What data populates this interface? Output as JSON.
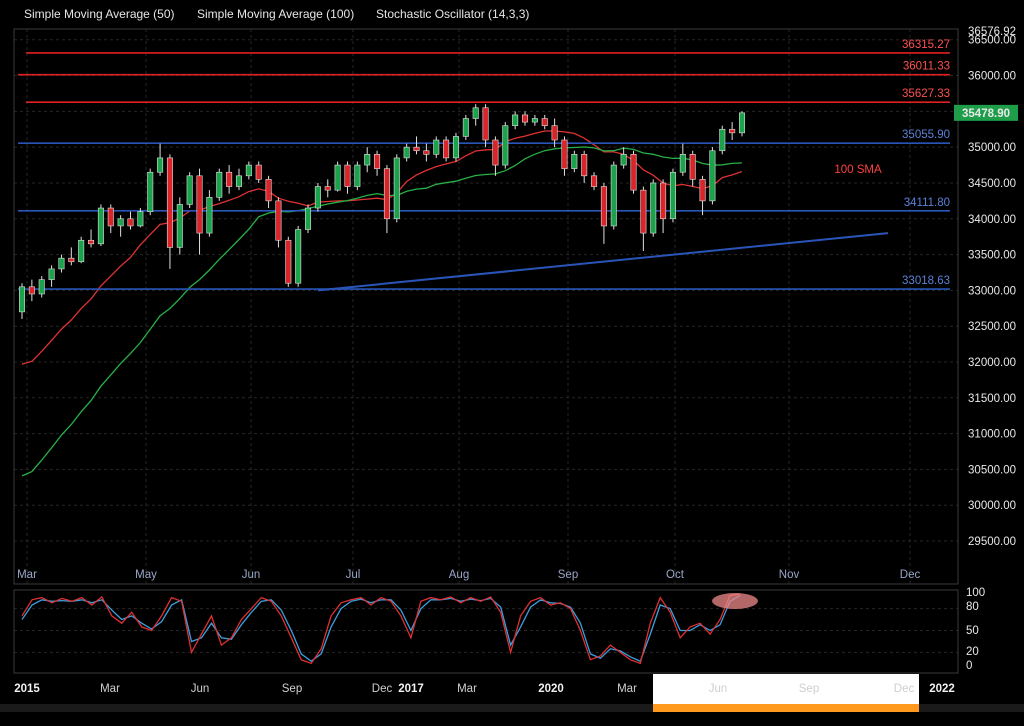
{
  "indicators": [
    {
      "label": "Simple Moving Average (50)"
    },
    {
      "label": "Simple Moving Average (100)"
    },
    {
      "label": "Stochastic Oscillator (14,3,3)"
    }
  ],
  "colors": {
    "background": "#000000",
    "bull_candle": "#1aa34a",
    "bear_candle": "#d9242a",
    "sma50": "#e03232",
    "sma100": "#27b045",
    "resistance": "#e02020",
    "support": "#2a55b8",
    "trendline": "#2a55b8",
    "stoch_k": "#e03030",
    "stoch_d": "#3aa0e0",
    "last_price_bg": "#1f9e4a",
    "navigator_window": "#ff9a1f",
    "highlight": "#f08a8a"
  },
  "chart_data": {
    "type": "candlestick",
    "y_axis": {
      "ylim": [
        28900,
        36650
      ],
      "ticks": [
        "36576.92",
        "36500.00",
        "36000.00",
        "35500.00",
        "35000.00",
        "34500.00",
        "34000.00",
        "33500.00",
        "33000.00",
        "32500.00",
        "32000.00",
        "31500.00",
        "31000.00",
        "30500.00",
        "30000.00",
        "29500.00"
      ]
    },
    "x_axis": {
      "months": [
        "Mar",
        "May",
        "Jun",
        "Jul",
        "Aug",
        "Sep",
        "Oct",
        "Nov",
        "Dec"
      ]
    },
    "last_price": "35478.90",
    "horizontal_levels": [
      {
        "value": 36315.27,
        "label": "36315.27",
        "kind": "resistance"
      },
      {
        "value": 36011.33,
        "label": "36011.33",
        "kind": "resistance"
      },
      {
        "value": 35627.33,
        "label": "35627.33",
        "kind": "resistance"
      },
      {
        "value": 35055.9,
        "label": "35055.90",
        "kind": "support"
      },
      {
        "value": 34111.8,
        "label": "34111.80",
        "kind": "support"
      },
      {
        "value": 33018.63,
        "label": "33018.63",
        "kind": "support"
      }
    ],
    "annotations": [
      {
        "text": "100 SMA",
        "value": 34750
      }
    ],
    "trendline": {
      "from": 33000,
      "to": 33800
    },
    "candles": [
      {
        "o": 32700,
        "h": 33100,
        "l": 32600,
        "c": 33050
      },
      {
        "o": 33050,
        "h": 33150,
        "l": 32850,
        "c": 32950
      },
      {
        "o": 32950,
        "h": 33200,
        "l": 32900,
        "c": 33150
      },
      {
        "o": 33150,
        "h": 33350,
        "l": 33050,
        "c": 33300
      },
      {
        "o": 33300,
        "h": 33500,
        "l": 33250,
        "c": 33450
      },
      {
        "o": 33450,
        "h": 33600,
        "l": 33350,
        "c": 33400
      },
      {
        "o": 33400,
        "h": 33750,
        "l": 33380,
        "c": 33700
      },
      {
        "o": 33700,
        "h": 33850,
        "l": 33600,
        "c": 33650
      },
      {
        "o": 33650,
        "h": 34200,
        "l": 33620,
        "c": 34150
      },
      {
        "o": 34150,
        "h": 34200,
        "l": 33800,
        "c": 33900
      },
      {
        "o": 33900,
        "h": 34050,
        "l": 33750,
        "c": 34000
      },
      {
        "o": 34000,
        "h": 34100,
        "l": 33850,
        "c": 33900
      },
      {
        "o": 33900,
        "h": 34150,
        "l": 33880,
        "c": 34100
      },
      {
        "o": 34100,
        "h": 34700,
        "l": 34050,
        "c": 34650
      },
      {
        "o": 34650,
        "h": 35050,
        "l": 34600,
        "c": 34850
      },
      {
        "o": 34850,
        "h": 34900,
        "l": 33300,
        "c": 33600
      },
      {
        "o": 33600,
        "h": 34300,
        "l": 33500,
        "c": 34200
      },
      {
        "o": 34200,
        "h": 34650,
        "l": 34150,
        "c": 34600
      },
      {
        "o": 34600,
        "h": 34700,
        "l": 33500,
        "c": 33800
      },
      {
        "o": 33800,
        "h": 34400,
        "l": 33750,
        "c": 34300
      },
      {
        "o": 34300,
        "h": 34700,
        "l": 34250,
        "c": 34650
      },
      {
        "o": 34650,
        "h": 34750,
        "l": 34350,
        "c": 34450
      },
      {
        "o": 34450,
        "h": 34700,
        "l": 34400,
        "c": 34600
      },
      {
        "o": 34600,
        "h": 34800,
        "l": 34550,
        "c": 34750
      },
      {
        "o": 34750,
        "h": 34800,
        "l": 34500,
        "c": 34550
      },
      {
        "o": 34550,
        "h": 34600,
        "l": 34150,
        "c": 34250
      },
      {
        "o": 34250,
        "h": 34300,
        "l": 33600,
        "c": 33700
      },
      {
        "o": 33700,
        "h": 33750,
        "l": 33050,
        "c": 33100
      },
      {
        "o": 33100,
        "h": 33900,
        "l": 33050,
        "c": 33850
      },
      {
        "o": 33850,
        "h": 34200,
        "l": 33800,
        "c": 34150
      },
      {
        "o": 34150,
        "h": 34500,
        "l": 34100,
        "c": 34450
      },
      {
        "o": 34450,
        "h": 34550,
        "l": 34300,
        "c": 34400
      },
      {
        "o": 34400,
        "h": 34800,
        "l": 34380,
        "c": 34750
      },
      {
        "o": 34750,
        "h": 34800,
        "l": 34350,
        "c": 34450
      },
      {
        "o": 34450,
        "h": 34800,
        "l": 34400,
        "c": 34750
      },
      {
        "o": 34750,
        "h": 35000,
        "l": 34650,
        "c": 34900
      },
      {
        "o": 34900,
        "h": 34950,
        "l": 34600,
        "c": 34700
      },
      {
        "o": 34700,
        "h": 34750,
        "l": 33800,
        "c": 34000
      },
      {
        "o": 34000,
        "h": 34900,
        "l": 33950,
        "c": 34850
      },
      {
        "o": 34850,
        "h": 35050,
        "l": 34800,
        "c": 35000
      },
      {
        "o": 35000,
        "h": 35150,
        "l": 34900,
        "c": 34950
      },
      {
        "o": 34950,
        "h": 35050,
        "l": 34800,
        "c": 34900
      },
      {
        "o": 34900,
        "h": 35150,
        "l": 34850,
        "c": 35100
      },
      {
        "o": 35100,
        "h": 35150,
        "l": 34800,
        "c": 34850
      },
      {
        "o": 34850,
        "h": 35200,
        "l": 34800,
        "c": 35150
      },
      {
        "o": 35150,
        "h": 35450,
        "l": 35100,
        "c": 35400
      },
      {
        "o": 35400,
        "h": 35600,
        "l": 35300,
        "c": 35550
      },
      {
        "o": 35550,
        "h": 35600,
        "l": 35000,
        "c": 35100
      },
      {
        "o": 35100,
        "h": 35150,
        "l": 34600,
        "c": 34750
      },
      {
        "o": 34750,
        "h": 35350,
        "l": 34700,
        "c": 35300
      },
      {
        "o": 35300,
        "h": 35500,
        "l": 35250,
        "c": 35450
      },
      {
        "o": 35450,
        "h": 35500,
        "l": 35300,
        "c": 35350
      },
      {
        "o": 35350,
        "h": 35450,
        "l": 35300,
        "c": 35400
      },
      {
        "o": 35400,
        "h": 35450,
        "l": 35250,
        "c": 35300
      },
      {
        "o": 35300,
        "h": 35400,
        "l": 35000,
        "c": 35100
      },
      {
        "o": 35100,
        "h": 35150,
        "l": 34600,
        "c": 34700
      },
      {
        "o": 34700,
        "h": 34950,
        "l": 34650,
        "c": 34900
      },
      {
        "o": 34900,
        "h": 34950,
        "l": 34500,
        "c": 34600
      },
      {
        "o": 34600,
        "h": 34650,
        "l": 34400,
        "c": 34450
      },
      {
        "o": 34450,
        "h": 34500,
        "l": 33650,
        "c": 33900
      },
      {
        "o": 33900,
        "h": 34800,
        "l": 33850,
        "c": 34750
      },
      {
        "o": 34750,
        "h": 35000,
        "l": 34700,
        "c": 34900
      },
      {
        "o": 34900,
        "h": 34950,
        "l": 34350,
        "c": 34400
      },
      {
        "o": 34400,
        "h": 34450,
        "l": 33550,
        "c": 33800
      },
      {
        "o": 33800,
        "h": 34550,
        "l": 33750,
        "c": 34500
      },
      {
        "o": 34500,
        "h": 34550,
        "l": 33800,
        "c": 34000
      },
      {
        "o": 34000,
        "h": 34700,
        "l": 33950,
        "c": 34650
      },
      {
        "o": 34650,
        "h": 35050,
        "l": 34600,
        "c": 34900
      },
      {
        "o": 34900,
        "h": 34950,
        "l": 34450,
        "c": 34550
      },
      {
        "o": 34550,
        "h": 34600,
        "l": 34050,
        "c": 34250
      },
      {
        "o": 34250,
        "h": 35000,
        "l": 34200,
        "c": 34950
      },
      {
        "o": 34950,
        "h": 35300,
        "l": 34900,
        "c": 35250
      },
      {
        "o": 35250,
        "h": 35350,
        "l": 35100,
        "c": 35200
      },
      {
        "o": 35200,
        "h": 35500,
        "l": 35150,
        "c": 35478.9
      }
    ],
    "stochastic": {
      "ylim": [
        0,
        100
      ],
      "ticks": [
        "100",
        "80",
        "50",
        "20",
        "0"
      ],
      "k": [
        70,
        92,
        95,
        88,
        94,
        90,
        95,
        85,
        96,
        70,
        60,
        75,
        55,
        50,
        70,
        95,
        90,
        20,
        45,
        70,
        30,
        40,
        65,
        80,
        95,
        90,
        70,
        40,
        10,
        5,
        25,
        70,
        88,
        92,
        95,
        85,
        95,
        90,
        70,
        40,
        90,
        95,
        92,
        96,
        88,
        95,
        90,
        96,
        75,
        20,
        70,
        90,
        95,
        85,
        88,
        80,
        50,
        10,
        15,
        30,
        20,
        10,
        5,
        60,
        95,
        75,
        40,
        55,
        60,
        45,
        65,
        98,
        100
      ],
      "d": [
        65,
        85,
        92,
        90,
        91,
        90,
        92,
        88,
        92,
        78,
        65,
        70,
        60,
        52,
        62,
        85,
        92,
        35,
        40,
        60,
        40,
        38,
        58,
        75,
        90,
        92,
        78,
        50,
        18,
        8,
        18,
        55,
        80,
        90,
        93,
        88,
        92,
        92,
        78,
        50,
        80,
        92,
        92,
        94,
        90,
        93,
        91,
        94,
        82,
        30,
        55,
        82,
        92,
        88,
        87,
        82,
        60,
        18,
        12,
        25,
        22,
        14,
        8,
        45,
        85,
        80,
        50,
        50,
        58,
        50,
        58,
        90,
        98
      ]
    }
  },
  "navigator": {
    "labels": [
      {
        "text": "2015",
        "bold": true
      },
      {
        "text": "Mar",
        "bold": false
      },
      {
        "text": "Jun",
        "bold": false
      },
      {
        "text": "Sep",
        "bold": false
      },
      {
        "text": "Dec",
        "bold": false
      },
      {
        "text": "2017",
        "bold": true
      },
      {
        "text": "Mar",
        "bold": false
      },
      {
        "text": "2020",
        "bold": true
      },
      {
        "text": "Mar",
        "bold": false
      },
      {
        "text": "Jun",
        "bold": false
      },
      {
        "text": "Sep",
        "bold": false
      },
      {
        "text": "Dec",
        "bold": false
      },
      {
        "text": "2022",
        "bold": true
      }
    ]
  }
}
